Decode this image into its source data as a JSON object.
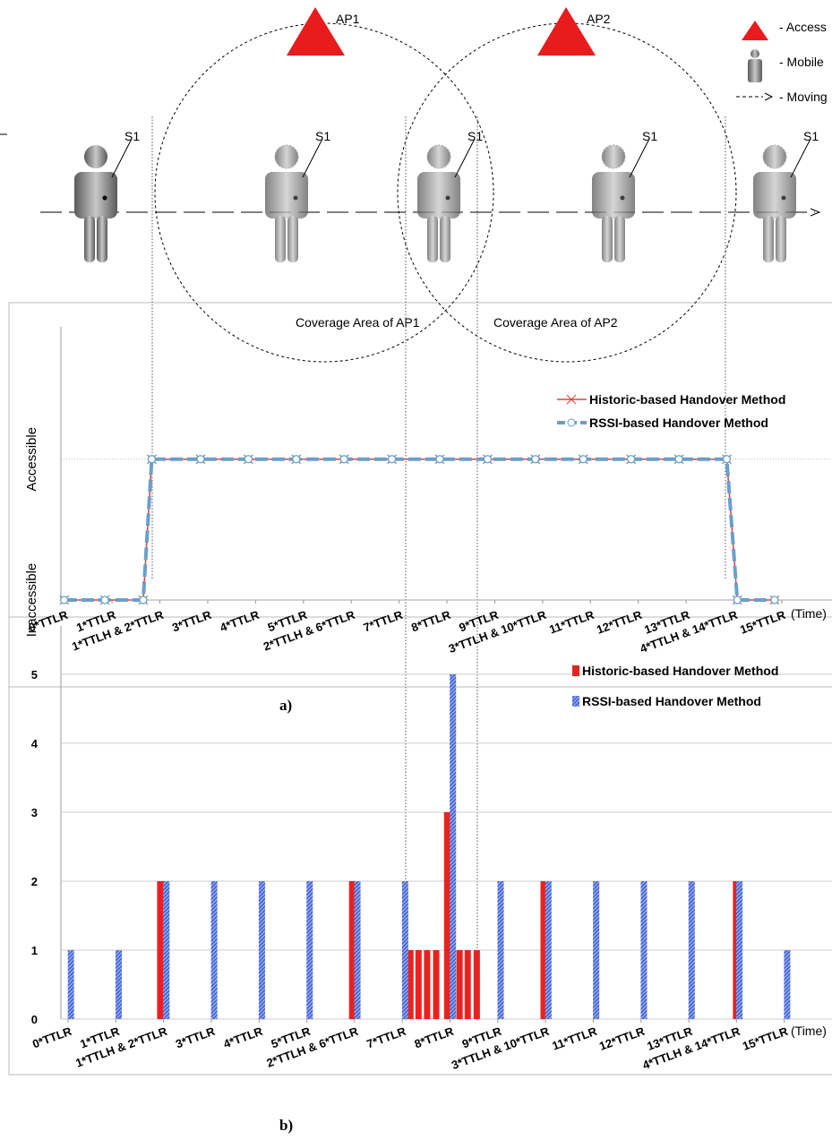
{
  "diagram": {
    "access_points": [
      {
        "label": "AP1"
      },
      {
        "label": "AP2"
      }
    ],
    "coverage_labels": [
      "Coverage Area of AP1",
      "Coverage Area of AP2"
    ],
    "station_labels": [
      "S1",
      "S1",
      "S1",
      "S1",
      "S1"
    ],
    "legend": [
      "- Access",
      "- Mobile",
      "- Moving"
    ]
  },
  "chart_data": [
    {
      "type": "line",
      "caption": "a)",
      "x_label": "(Time)",
      "x": [
        0,
        0.85,
        1.65,
        1.83,
        2.85,
        3.85,
        4.85,
        5.85,
        6.85,
        7.85,
        8.85,
        9.85,
        10.85,
        11.85,
        12.85,
        13.85,
        14.07,
        14.85
      ],
      "series": [
        {
          "name": "Historic-based Handover Method",
          "color": "#ec3b3b",
          "values": [
            0,
            0,
            0,
            1,
            1,
            1,
            1,
            1,
            1,
            1,
            1,
            1,
            1,
            1,
            1,
            1,
            0,
            0
          ]
        },
        {
          "name": "RSSI-based Handover Method",
          "color": "#6a9fcc",
          "values": [
            0,
            0,
            0,
            1,
            1,
            1,
            1,
            1,
            1,
            1,
            1,
            1,
            1,
            1,
            1,
            1,
            0,
            0
          ]
        }
      ],
      "xlim": [
        -0.07,
        16.05
      ],
      "xticks": [
        {
          "value": 0,
          "label": "0*TTLR"
        },
        {
          "value": 1,
          "label": "1*TTLR"
        },
        {
          "value": 2,
          "label": "1*TTLH & 2*TTLR"
        },
        {
          "value": 3,
          "label": "3*TTLR"
        },
        {
          "value": 4,
          "label": "4*TTLR"
        },
        {
          "value": 5,
          "label": "5*TTLR"
        },
        {
          "value": 6,
          "label": "2*TTLH & 6*TTLR"
        },
        {
          "value": 7,
          "label": "7*TTLR"
        },
        {
          "value": 8,
          "label": "8*TTLR"
        },
        {
          "value": 9,
          "label": "9*TTLR"
        },
        {
          "value": 10,
          "label": "3*TTLH & 10*TTLR"
        },
        {
          "value": 11,
          "label": "11*TTLR"
        },
        {
          "value": 12,
          "label": "12*TTLR"
        },
        {
          "value": 13,
          "label": "13*TTLR"
        },
        {
          "value": 14,
          "label": "4*TTLH & 14*TTLR"
        },
        {
          "value": 15,
          "label": "15*TTLR"
        }
      ],
      "ylim": [
        0,
        1.94
      ],
      "yticks": [
        {
          "value": 0,
          "label": "Inaccessible"
        },
        {
          "value": 1,
          "label": "Accessible"
        }
      ]
    },
    {
      "type": "bar",
      "caption": "b)",
      "x_label": "(Time)",
      "series": [
        {
          "name": "Historic-based Handover Method",
          "color": "#e8231f",
          "x": [
            1.93,
            5.95,
            7.17,
            7.34,
            7.52,
            7.71,
            7.94,
            8.2,
            8.37,
            8.56,
            9.96,
            13.99
          ],
          "values": [
            2,
            2,
            1,
            1,
            1,
            1,
            3,
            1,
            1,
            1,
            2,
            2
          ]
        },
        {
          "name": "RSSI-based Handover Method",
          "color": "#3d5fd6",
          "x": [
            0.06,
            1.06,
            2.06,
            3.06,
            4.06,
            5.06,
            6.06,
            7.06,
            8.06,
            9.06,
            10.06,
            11.06,
            12.06,
            13.06,
            14.06,
            15.06
          ],
          "values": [
            1,
            1,
            2,
            2,
            2,
            2,
            2,
            2,
            5,
            2,
            2,
            2,
            2,
            2,
            2,
            1
          ]
        }
      ],
      "xlim": [
        -0.15,
        16.0
      ],
      "xticks": [
        {
          "value": 0,
          "label": "0*TTLR"
        },
        {
          "value": 1,
          "label": "1*TTLR"
        },
        {
          "value": 2,
          "label": "1*TTLH & 2*TTLR"
        },
        {
          "value": 3,
          "label": "3*TTLR"
        },
        {
          "value": 4,
          "label": "4*TTLR"
        },
        {
          "value": 5,
          "label": "5*TTLR"
        },
        {
          "value": 6,
          "label": "2*TTLH & 6*TTLR"
        },
        {
          "value": 7,
          "label": "7*TTLR"
        },
        {
          "value": 8,
          "label": "8*TTLR"
        },
        {
          "value": 9,
          "label": "9*TTLR"
        },
        {
          "value": 10,
          "label": "3*TTLH & 10*TTLR"
        },
        {
          "value": 11,
          "label": "11*TTLR"
        },
        {
          "value": 12,
          "label": "12*TTLR"
        },
        {
          "value": 13,
          "label": "13*TTLR"
        },
        {
          "value": 14,
          "label": "4*TTLH & 14*TTLR"
        },
        {
          "value": 15,
          "label": "15*TTLR"
        }
      ],
      "ylim": [
        0,
        5.7
      ],
      "yticks": [
        0,
        1,
        2,
        3,
        4,
        5
      ],
      "grid": true
    }
  ]
}
